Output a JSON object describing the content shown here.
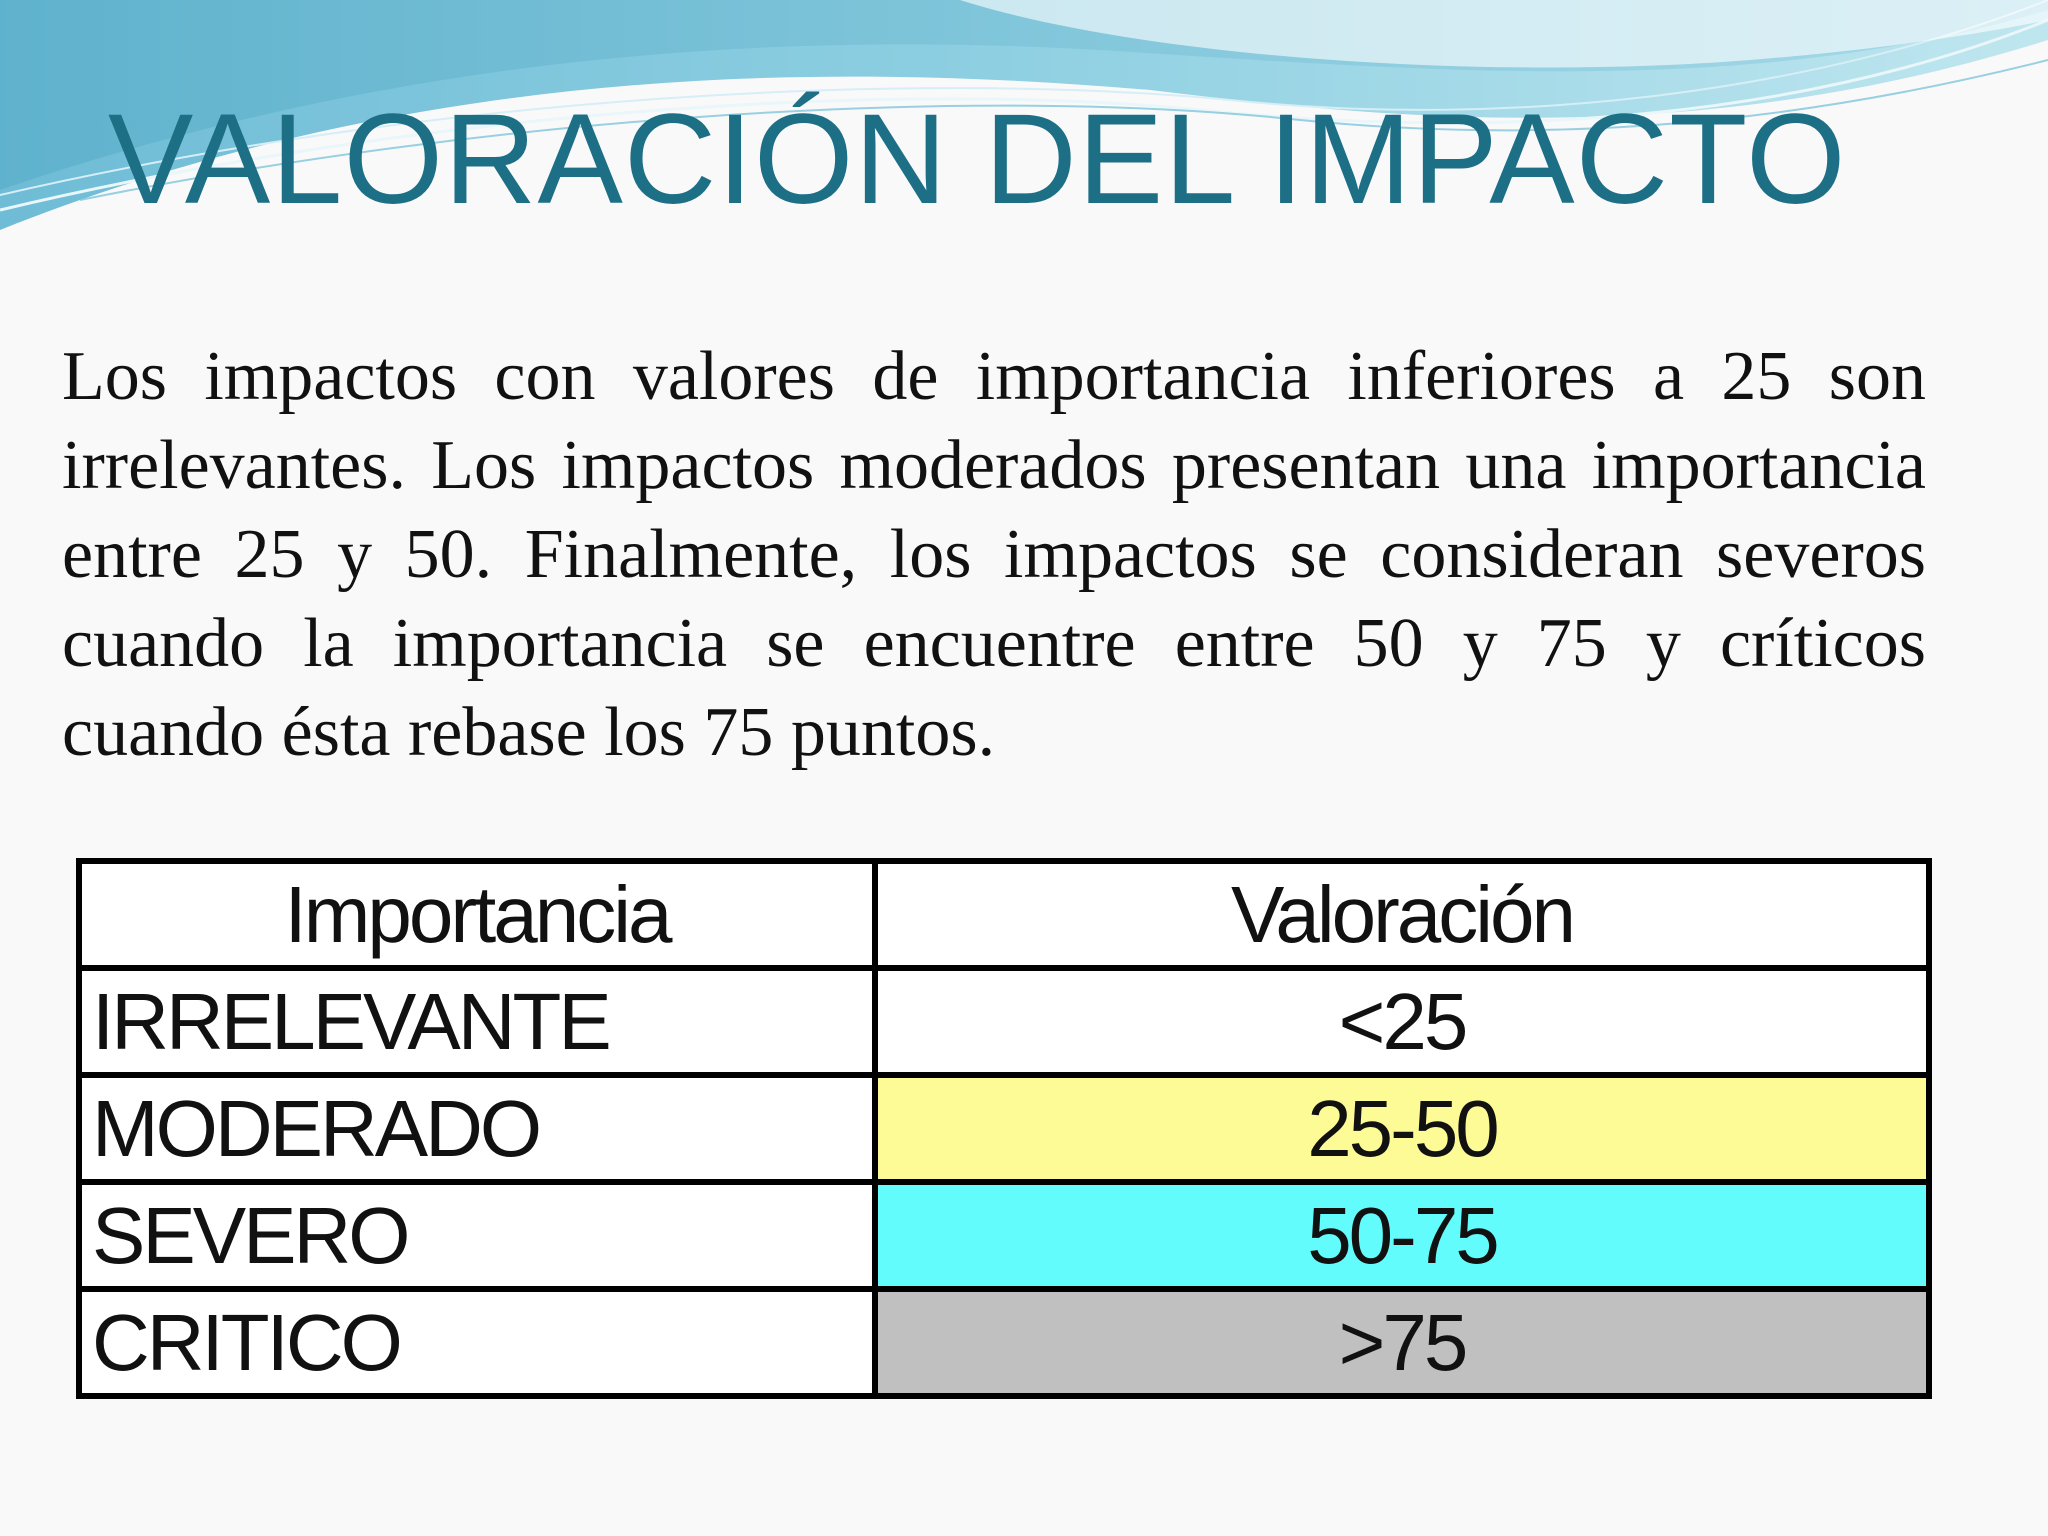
{
  "slide": {
    "title": "VALORACIÓN DEL IMPACTO",
    "paragraph": "Los impactos con valores de importancia inferiores a 25 son irrelevantes. Los impactos moderados presentan una importancia entre 25 y 50. Finalmente, los impactos se consideran severos cuando la importancia se encuentre entre 50 y 75 y críticos cuando ésta rebase los 75 puntos."
  },
  "table": {
    "headers": [
      "Importancia",
      "Valoración"
    ],
    "rows": [
      {
        "name": "IRRELEVANTE",
        "value": "<25",
        "color": "#ffffff"
      },
      {
        "name": "MODERADO",
        "value": "25-50",
        "color": "#fdfb96"
      },
      {
        "name": "SEVERO",
        "value": "50-75",
        "color": "#62fcfc"
      },
      {
        "name": "CRITICO",
        "value": ">75",
        "color": "#c0c0c0"
      }
    ]
  },
  "theme": {
    "title_color": "#1d6f86",
    "wave_colors": [
      "#7fc6dc",
      "#b9e3ec",
      "#5bb4cf"
    ]
  }
}
